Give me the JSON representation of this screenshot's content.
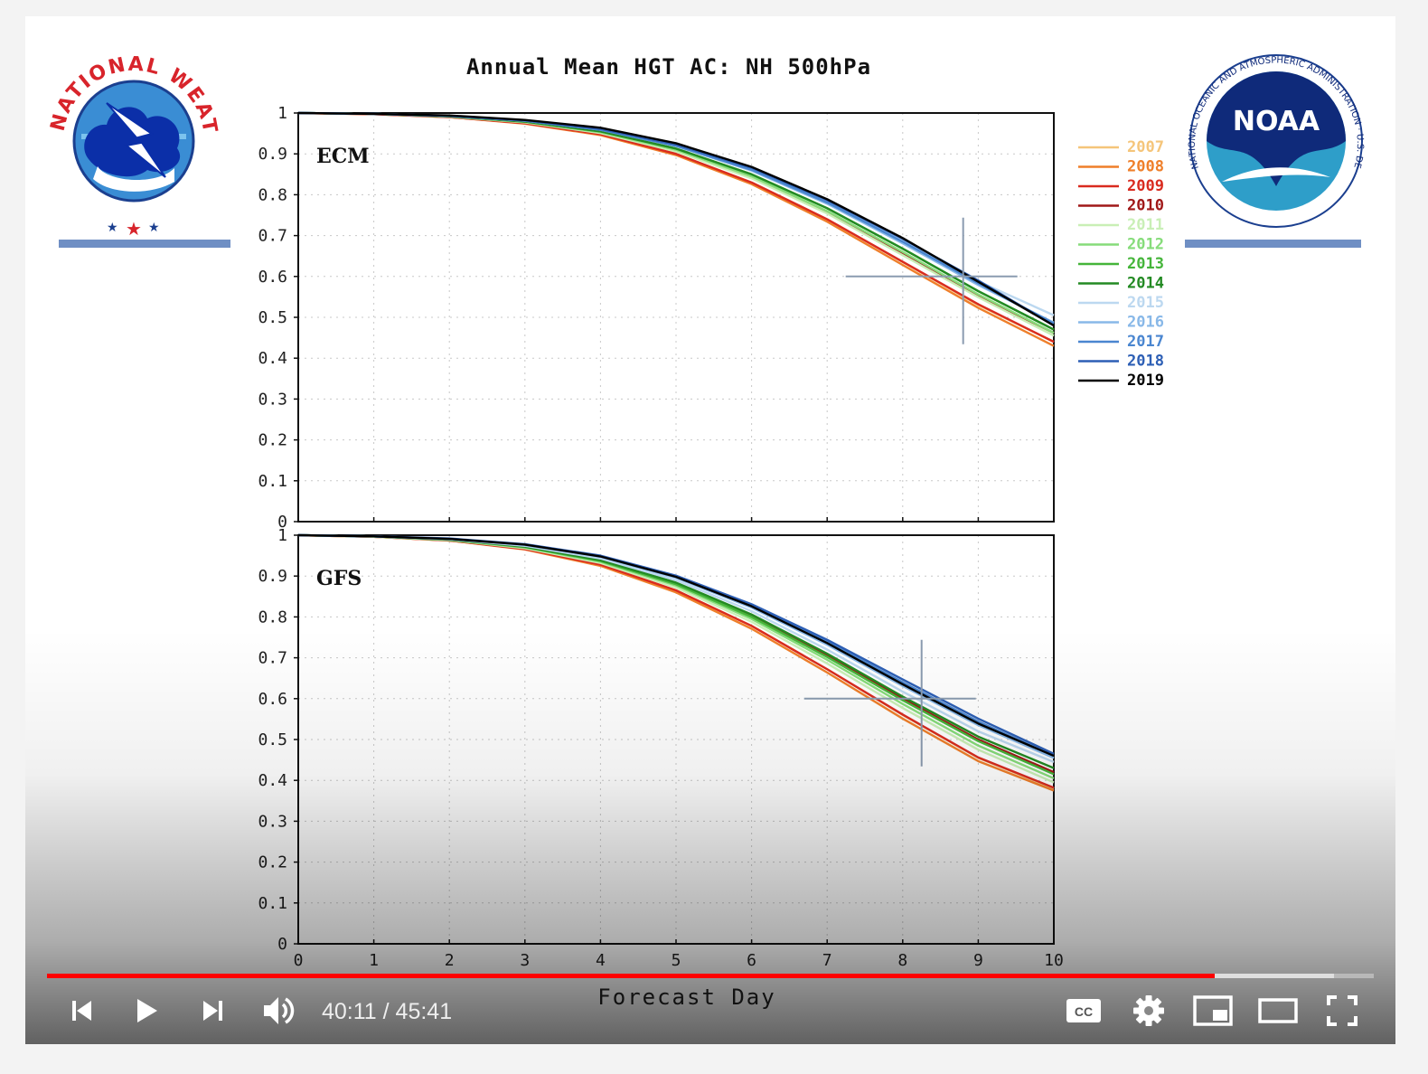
{
  "slide": {
    "title": "Annual Mean HGT AC: NH 500hPa",
    "nws_logo_text": "NATIONAL WEATHER SERVICE",
    "noaa_logo_text": "NOAA",
    "noaa_ring_text": "NATIONAL OCEANIC AND ATMOSPHERIC ADMINISTRATION · U.S. DEPARTMENT OF COMMERCE",
    "accent_bar_color": "#6f8fc4"
  },
  "chart_data": {
    "type": "line",
    "title": "Annual Mean HGT AC: NH 500hPa",
    "xlabel": "Forecast Day",
    "ylabel": "",
    "xlim": [
      0,
      10
    ],
    "ylim": [
      0,
      1
    ],
    "x_ticks": [
      "0",
      "1",
      "2",
      "3",
      "4",
      "5",
      "6",
      "7",
      "8",
      "9",
      "10"
    ],
    "y_ticks": [
      "0",
      "0.1",
      "0.2",
      "0.3",
      "0.4",
      "0.5",
      "0.6",
      "0.7",
      "0.8",
      "0.9",
      "1"
    ],
    "grid": true,
    "legend_position": "right",
    "legend": [
      {
        "name": "2007",
        "color": "#f5c57a"
      },
      {
        "name": "2008",
        "color": "#ef7f2a"
      },
      {
        "name": "2009",
        "color": "#d92b1f"
      },
      {
        "name": "2010",
        "color": "#a01818"
      },
      {
        "name": "2011",
        "color": "#c9efb6"
      },
      {
        "name": "2012",
        "color": "#86dc7a"
      },
      {
        "name": "2013",
        "color": "#45b53a"
      },
      {
        "name": "2014",
        "color": "#238a23"
      },
      {
        "name": "2015",
        "color": "#bcd8f0"
      },
      {
        "name": "2016",
        "color": "#88b8e8"
      },
      {
        "name": "2017",
        "color": "#4a86d0"
      },
      {
        "name": "2018",
        "color": "#2d5fb5"
      },
      {
        "name": "2019",
        "color": "#000000"
      }
    ],
    "panels": [
      {
        "label": "ECM",
        "crosshair": {
          "x": 8.8,
          "y": 0.6
        },
        "series": [
          {
            "name": "2007",
            "values": [
              1,
              0.997,
              0.99,
              0.975,
              0.948,
              0.9,
              0.83,
              0.74,
              0.635,
              0.53,
              0.44
            ]
          },
          {
            "name": "2008",
            "values": [
              1,
              0.997,
              0.99,
              0.974,
              0.946,
              0.897,
              0.826,
              0.734,
              0.628,
              0.523,
              0.43
            ]
          },
          {
            "name": "2009",
            "values": [
              1,
              0.997,
              0.99,
              0.975,
              0.948,
              0.9,
              0.83,
              0.74,
              0.636,
              0.532,
              0.44
            ]
          },
          {
            "name": "2010",
            "values": [
              1,
              0.998,
              0.991,
              0.978,
              0.952,
              0.907,
              0.842,
              0.756,
              0.656,
              0.553,
              0.462
            ]
          },
          {
            "name": "2011",
            "values": [
              1,
              0.998,
              0.991,
              0.977,
              0.951,
              0.906,
              0.84,
              0.754,
              0.652,
              0.549,
              0.455
            ]
          },
          {
            "name": "2012",
            "values": [
              1,
              0.998,
              0.992,
              0.978,
              0.953,
              0.91,
              0.845,
              0.76,
              0.66,
              0.556,
              0.462
            ]
          },
          {
            "name": "2013",
            "values": [
              1,
              0.998,
              0.992,
              0.979,
              0.955,
              0.913,
              0.85,
              0.767,
              0.668,
              0.564,
              0.47
            ]
          },
          {
            "name": "2014",
            "values": [
              1,
              0.998,
              0.992,
              0.979,
              0.955,
              0.913,
              0.85,
              0.767,
              0.668,
              0.564,
              0.47
            ]
          },
          {
            "name": "2015",
            "values": [
              1,
              0.998,
              0.993,
              0.981,
              0.96,
              0.921,
              0.862,
              0.782,
              0.686,
              0.588,
              0.505
            ]
          },
          {
            "name": "2016",
            "values": [
              1,
              0.998,
              0.993,
              0.981,
              0.959,
              0.919,
              0.859,
              0.778,
              0.681,
              0.579,
              0.487
            ]
          },
          {
            "name": "2017",
            "values": [
              1,
              0.998,
              0.993,
              0.981,
              0.959,
              0.92,
              0.861,
              0.781,
              0.685,
              0.583,
              0.485
            ]
          },
          {
            "name": "2018",
            "values": [
              1,
              0.998,
              0.993,
              0.982,
              0.961,
              0.923,
              0.866,
              0.787,
              0.692,
              0.59,
              0.48
            ]
          },
          {
            "name": "2019",
            "values": [
              1,
              0.998,
              0.994,
              0.983,
              0.964,
              0.926,
              0.868,
              0.789,
              0.694,
              0.587,
              0.48
            ]
          }
        ]
      },
      {
        "label": "GFS",
        "crosshair": {
          "x": 8.25,
          "y": 0.6
        },
        "series": [
          {
            "name": "2007",
            "values": [
              1,
              0.996,
              0.987,
              0.966,
              0.928,
              0.865,
              0.778,
              0.672,
              0.56,
              0.455,
              0.38
            ]
          },
          {
            "name": "2008",
            "values": [
              1,
              0.996,
              0.987,
              0.965,
              0.925,
              0.86,
              0.771,
              0.664,
              0.551,
              0.447,
              0.375
            ]
          },
          {
            "name": "2009",
            "values": [
              1,
              0.996,
              0.987,
              0.966,
              0.928,
              0.865,
              0.778,
              0.672,
              0.561,
              0.456,
              0.382
            ]
          },
          {
            "name": "2010",
            "values": [
              1,
              0.997,
              0.989,
              0.972,
              0.938,
              0.882,
              0.803,
              0.706,
              0.6,
              0.5,
              0.42
            ]
          },
          {
            "name": "2011",
            "values": [
              1,
              0.996,
              0.988,
              0.968,
              0.932,
              0.872,
              0.788,
              0.686,
              0.577,
              0.475,
              0.395
            ]
          },
          {
            "name": "2012",
            "values": [
              1,
              0.997,
              0.988,
              0.97,
              0.935,
              0.877,
              0.795,
              0.695,
              0.587,
              0.485,
              0.405
            ]
          },
          {
            "name": "2013",
            "values": [
              1,
              0.997,
              0.989,
              0.971,
              0.937,
              0.88,
              0.8,
              0.702,
              0.596,
              0.496,
              0.415
            ]
          },
          {
            "name": "2014",
            "values": [
              1,
              0.997,
              0.989,
              0.972,
              0.939,
              0.884,
              0.806,
              0.71,
              0.605,
              0.507,
              0.43
            ]
          },
          {
            "name": "2015",
            "values": [
              1,
              0.997,
              0.99,
              0.974,
              0.943,
              0.89,
              0.814,
              0.72,
              0.617,
              0.52,
              0.445
            ]
          },
          {
            "name": "2016",
            "values": [
              1,
              0.997,
              0.991,
              0.976,
              0.947,
              0.896,
              0.823,
              0.732,
              0.631,
              0.535,
              0.455
            ]
          },
          {
            "name": "2017",
            "values": [
              1,
              0.997,
              0.991,
              0.977,
              0.949,
              0.899,
              0.828,
              0.739,
              0.64,
              0.544,
              0.46
            ]
          },
          {
            "name": "2018",
            "values": [
              1,
              0.997,
              0.992,
              0.978,
              0.95,
              0.901,
              0.831,
              0.744,
              0.647,
              0.551,
              0.465
            ]
          },
          {
            "name": "2019",
            "values": [
              1,
              0.997,
              0.991,
              0.977,
              0.948,
              0.898,
              0.826,
              0.736,
              0.635,
              0.539,
              0.46
            ]
          }
        ]
      }
    ]
  },
  "player": {
    "time_display": "40:11 / 45:41",
    "progress_fraction": 0.88,
    "buffered_fraction": 0.97,
    "progress_color": "#ff0000",
    "controls": [
      {
        "name": "previous-icon"
      },
      {
        "name": "play-icon"
      },
      {
        "name": "next-icon"
      },
      {
        "name": "volume-icon"
      },
      {
        "name": "cc-icon",
        "label": "CC"
      },
      {
        "name": "settings-icon"
      },
      {
        "name": "miniplayer-icon"
      },
      {
        "name": "theater-mode-icon"
      },
      {
        "name": "fullscreen-icon"
      }
    ]
  }
}
